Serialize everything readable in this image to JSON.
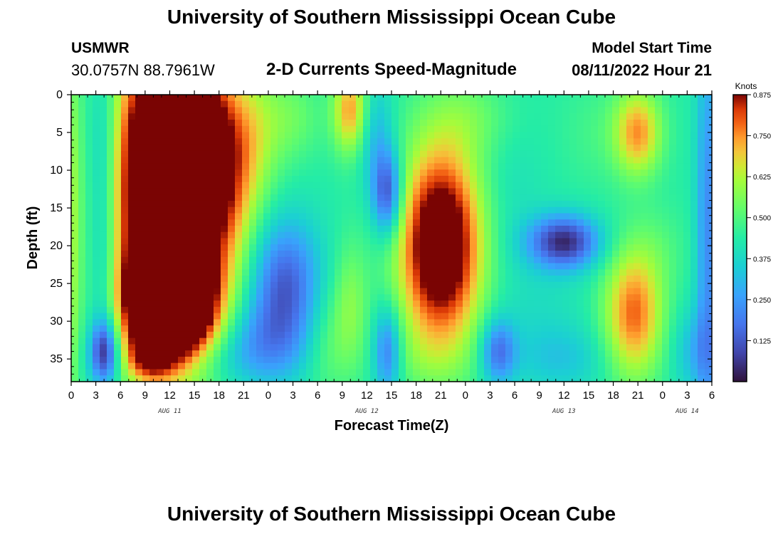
{
  "titles": {
    "top": "University of Southern Mississippi Ocean Cube",
    "bottom": "University of Southern Mississippi Ocean Cube"
  },
  "station": {
    "name": "USMWR",
    "coords": "30.0757N  88.7961W"
  },
  "model": {
    "label": "Model Start Time",
    "time": "08/11/2022 Hour 21"
  },
  "chart_data": {
    "type": "heatmap",
    "title": "2-D Currents Speed-Magnitude",
    "xlabel": "Forecast Time(Z)",
    "ylabel": "Depth (ft)",
    "x_range_hours": [
      0,
      78
    ],
    "x_origin": "AUG 11 00Z",
    "x_tick_step_hours": 3,
    "x_tick_labels": [
      "0",
      "3",
      "6",
      "9",
      "12",
      "15",
      "18",
      "21",
      "0",
      "3",
      "6",
      "9",
      "12",
      "15",
      "18",
      "21",
      "0",
      "3",
      "6",
      "9",
      "12",
      "15",
      "18",
      "21",
      "0",
      "3",
      "6"
    ],
    "x_day_labels": [
      {
        "label": "AUG 11",
        "hour": 12
      },
      {
        "label": "AUG 12",
        "hour": 36
      },
      {
        "label": "AUG 13",
        "hour": 60
      },
      {
        "label": "AUG 14",
        "hour": 75
      }
    ],
    "y_range_ft": [
      0,
      38
    ],
    "y_ticks": [
      0,
      5,
      10,
      15,
      20,
      25,
      30,
      35
    ],
    "colorbar": {
      "title": "Knots",
      "range": [
        0,
        0.875
      ],
      "ticks": [
        "0.875",
        "0.750",
        "0.625",
        "0.500",
        "0.375",
        "0.250",
        "0.125"
      ],
      "tick_values": [
        0.875,
        0.75,
        0.625,
        0.5,
        0.375,
        0.25,
        0.125
      ]
    },
    "features": [
      {
        "t": 12,
        "d": 12,
        "v": 0.95,
        "st": 5,
        "sd": 14
      },
      {
        "t": 12,
        "d": 28,
        "v": 0.9,
        "st": 3.5,
        "sd": 5
      },
      {
        "t": 15,
        "d": 5,
        "v": 0.3,
        "st": 3,
        "sd": 5
      },
      {
        "t": 9.5,
        "d": 35,
        "v": 0.3,
        "st": 2,
        "sd": 2
      },
      {
        "t": 22,
        "d": 5,
        "v": 0.15,
        "st": 2.5,
        "sd": 6
      },
      {
        "t": 19,
        "d": 13,
        "v": 0.15,
        "st": 2.5,
        "sd": 6
      },
      {
        "t": 4,
        "d": 34,
        "v": -0.4,
        "st": 1.2,
        "sd": 3
      },
      {
        "t": 4,
        "d": 8,
        "v": -0.25,
        "st": 1.5,
        "sd": 10
      },
      {
        "t": 4,
        "d": 25,
        "v": -0.15,
        "st": 1.3,
        "sd": 8
      },
      {
        "t": 26,
        "d": 25,
        "v": -0.35,
        "st": 3,
        "sd": 6
      },
      {
        "t": 23,
        "d": 33,
        "v": -0.2,
        "st": 4,
        "sd": 4
      },
      {
        "t": 13,
        "d": 35,
        "v": -0.1,
        "st": 6,
        "sd": 2.5
      },
      {
        "t": 27,
        "d": 3,
        "v": 0.1,
        "st": 2.5,
        "sd": 4
      },
      {
        "t": 31,
        "d": 33,
        "v": 0.1,
        "st": 2,
        "sd": 5
      },
      {
        "t": 34,
        "d": 2,
        "v": 0.35,
        "st": 1.5,
        "sd": 4
      },
      {
        "t": 34,
        "d": 28,
        "v": 0.15,
        "st": 1.5,
        "sd": 6
      },
      {
        "t": 38.5,
        "d": 13,
        "v": -0.4,
        "st": 1.3,
        "sd": 4
      },
      {
        "t": 38.5,
        "d": 34,
        "v": -0.3,
        "st": 1.2,
        "sd": 4
      },
      {
        "t": 37,
        "d": 5,
        "v": -0.15,
        "st": 1.5,
        "sd": 5
      },
      {
        "t": 45,
        "d": 20,
        "v": 0.7,
        "st": 3.5,
        "sd": 9
      },
      {
        "t": 49,
        "d": 3,
        "v": 0.1,
        "st": 4,
        "sd": 4
      },
      {
        "t": 43,
        "d": 35,
        "v": 0.05,
        "st": 4,
        "sd": 3
      },
      {
        "t": 52,
        "d": 34,
        "v": -0.3,
        "st": 1.5,
        "sd": 3
      },
      {
        "t": 53,
        "d": 12,
        "v": -0.05,
        "st": 3,
        "sd": 10
      },
      {
        "t": 60,
        "d": 19.5,
        "v": -0.45,
        "st": 3,
        "sd": 2.5
      },
      {
        "t": 57,
        "d": 30,
        "v": -0.05,
        "st": 4,
        "sd": 6
      },
      {
        "t": 60,
        "d": 35,
        "v": -0.1,
        "st": 4,
        "sd": 3
      },
      {
        "t": 69,
        "d": 5,
        "v": 0.35,
        "st": 2,
        "sd": 4
      },
      {
        "t": 68.5,
        "d": 29,
        "v": 0.4,
        "st": 2.5,
        "sd": 6
      },
      {
        "t": 71.5,
        "d": 20,
        "v": 0.05,
        "st": 2.5,
        "sd": 4
      },
      {
        "t": 64,
        "d": 5,
        "v": 0.05,
        "st": 3,
        "sd": 5
      },
      {
        "t": 77.5,
        "d": 18,
        "v": -0.25,
        "st": 1,
        "sd": 20
      },
      {
        "t": 76,
        "d": 34,
        "v": -0.15,
        "st": 2,
        "sd": 4
      },
      {
        "t": 0,
        "d": 20,
        "v": 0.15,
        "st": 0.8,
        "sd": 20
      }
    ]
  }
}
